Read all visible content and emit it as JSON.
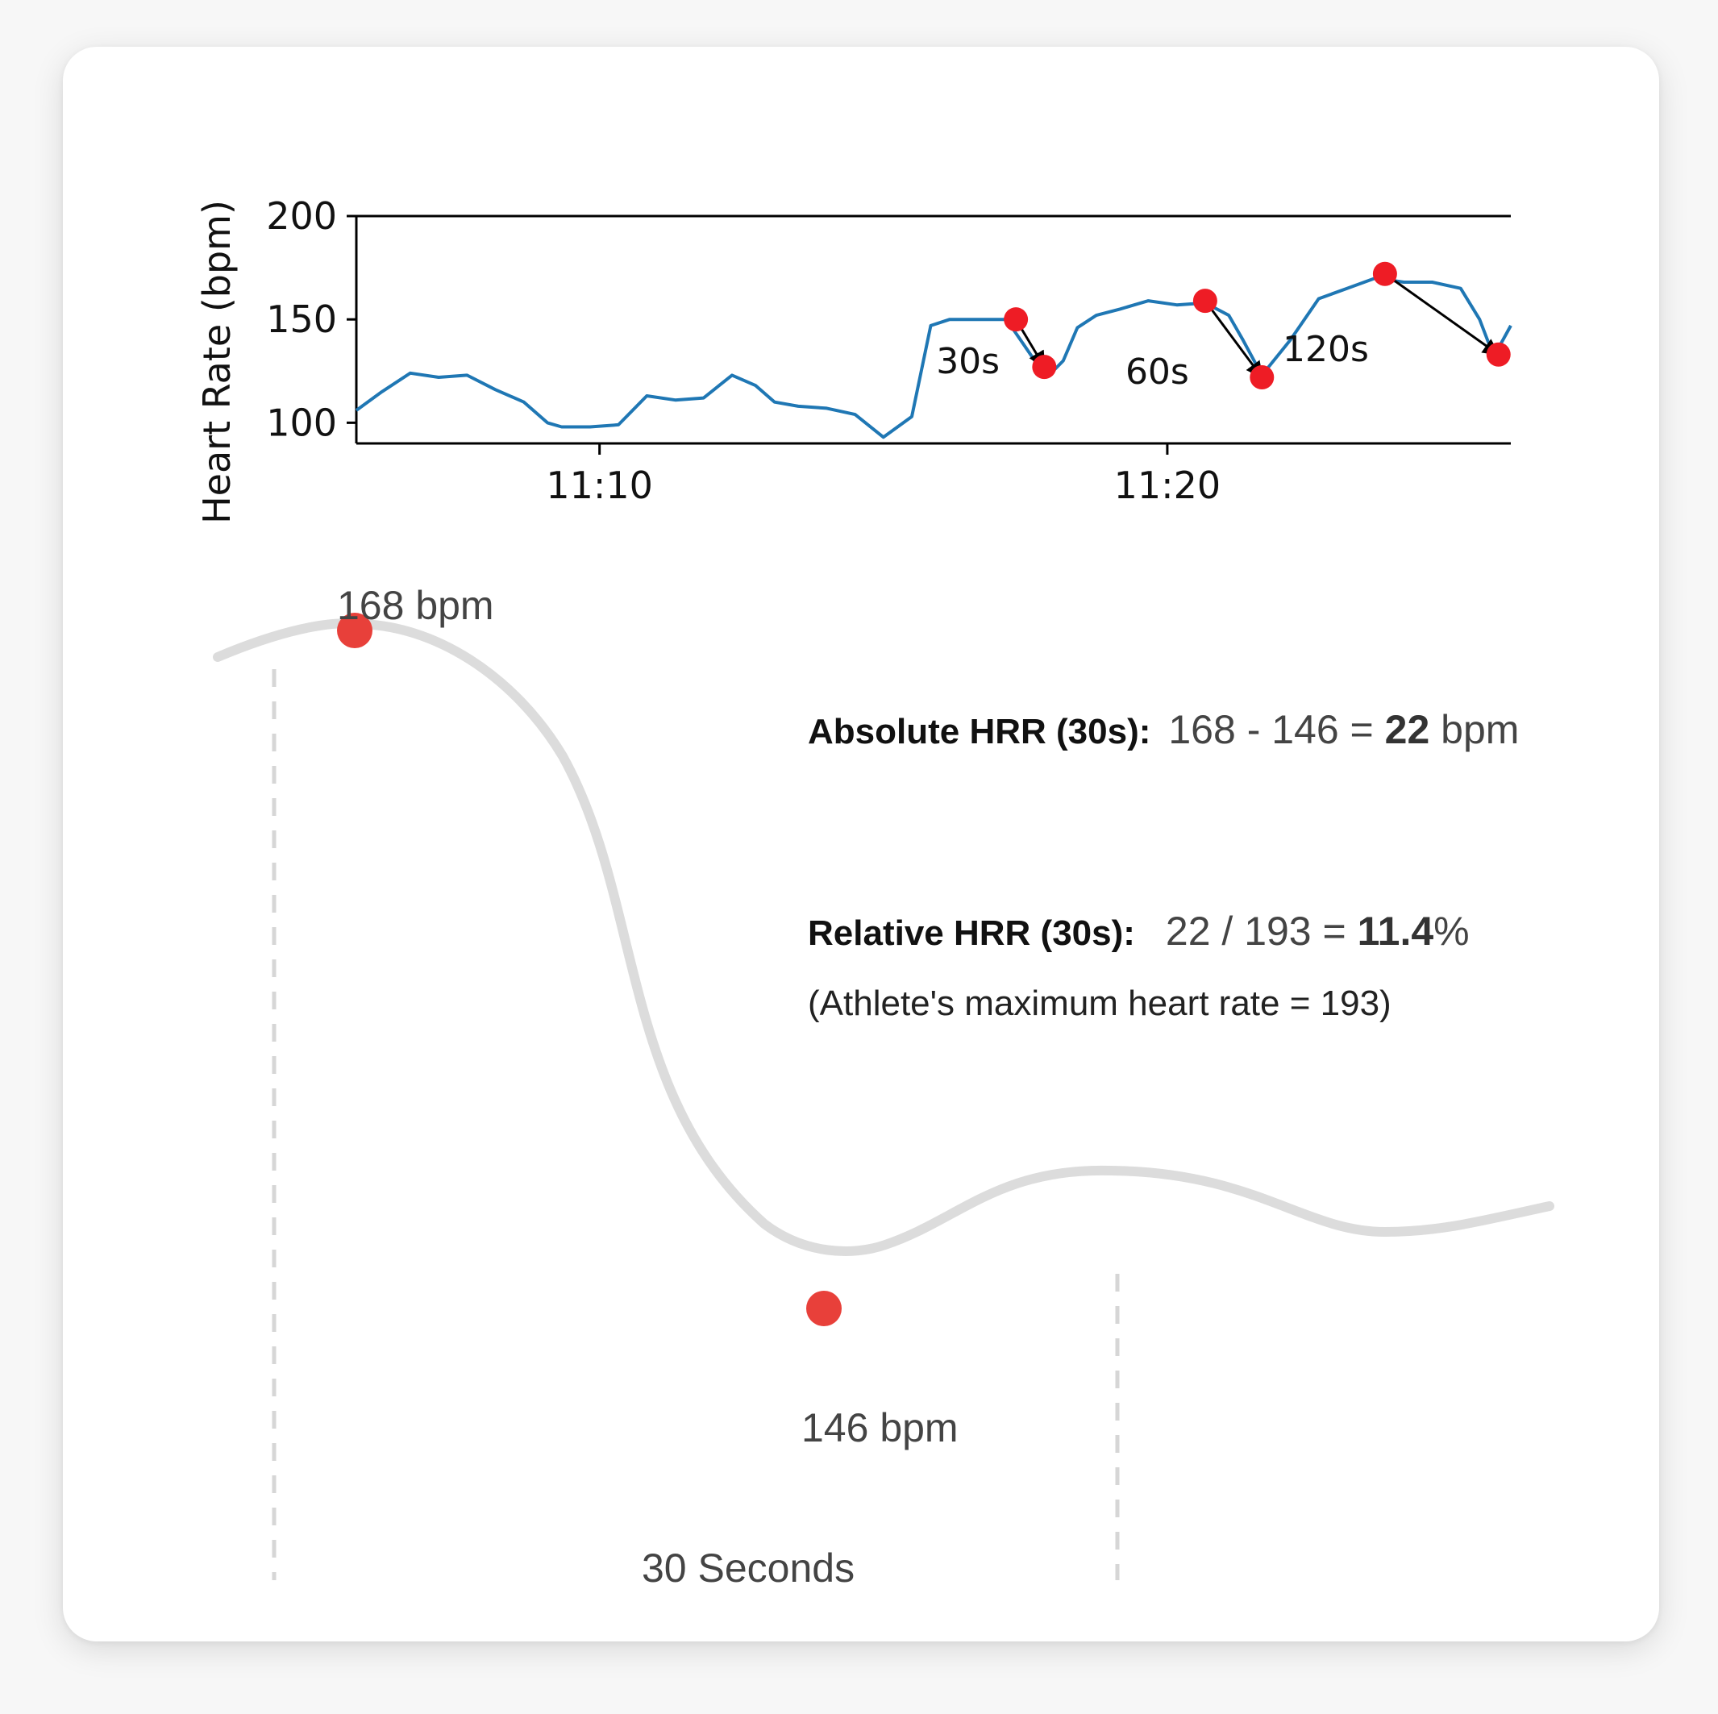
{
  "chart_data": [
    {
      "type": "line",
      "title": "",
      "ylabel": "Heart Rate (bpm)",
      "xlabel": "",
      "ylim": [
        90,
        200
      ],
      "xlim": [
        "11:05:43",
        "11:26:03"
      ],
      "yticks": [
        100,
        150,
        200
      ],
      "xticks": [
        "11:10",
        "11:20"
      ],
      "series": [
        {
          "values_time": [
            "11:05:43",
            "11:06:10",
            "11:06:40",
            "11:07:10",
            "11:07:40",
            "11:08:10",
            "11:08:40",
            "11:09:05",
            "11:09:20",
            "11:09:50",
            "11:10:20",
            "11:10:50",
            "11:11:20",
            "11:11:50",
            "11:12:20",
            "11:12:45",
            "11:13:05",
            "11:13:30",
            "11:14:00",
            "11:14:30",
            "11:15:00",
            "11:15:30",
            "11:15:50",
            "11:16:10",
            "11:16:40",
            "11:17:10",
            "11:17:40",
            "11:17:55",
            "11:18:10",
            "11:18:25",
            "11:18:45",
            "11:19:10",
            "11:19:40",
            "11:20:10",
            "11:20:40",
            "11:21:05",
            "11:21:20",
            "11:21:40",
            "11:22:10",
            "11:22:40",
            "11:23:10",
            "11:23:40",
            "11:24:10",
            "11:24:40",
            "11:25:10",
            "11:25:30",
            "11:25:45",
            "11:26:03"
          ],
          "values": [
            106,
            115,
            124,
            122,
            123,
            116,
            110,
            100,
            98,
            98,
            99,
            113,
            111,
            112,
            123,
            118,
            110,
            108,
            107,
            104,
            93,
            103,
            147,
            150,
            150,
            150,
            130,
            123,
            130,
            146,
            152,
            155,
            159,
            157,
            158,
            152,
            140,
            123,
            140,
            160,
            165,
            170,
            168,
            168,
            165,
            150,
            132,
            147
          ]
        }
      ],
      "markers": [
        {
          "time": "11:17:20",
          "value": 150
        },
        {
          "time": "11:17:50",
          "value": 127
        },
        {
          "time": "11:20:40",
          "value": 159
        },
        {
          "time": "11:21:40",
          "value": 122
        },
        {
          "time": "11:23:50",
          "value": 172
        },
        {
          "time": "11:25:50",
          "value": 133
        }
      ],
      "annotations": [
        {
          "text": "30s",
          "from_time": "11:17:20",
          "from_value": 150,
          "to_time": "11:17:50",
          "to_value": 127
        },
        {
          "text": "60s",
          "from_time": "11:20:40",
          "from_value": 159,
          "to_time": "11:21:40",
          "to_value": 122
        },
        {
          "text": "120s",
          "from_time": "11:23:50",
          "from_value": 172,
          "to_time": "11:25:50",
          "to_value": 133
        }
      ],
      "colors": {
        "line": "#1f77b4",
        "marker": "#ee1c25",
        "arrow": "#000000"
      }
    }
  ],
  "diagram": {
    "peak_label": "168 bpm",
    "trough_label": "146 bpm",
    "duration_label": "30 Seconds",
    "colors": {
      "curve": "#dcdcdc",
      "marker": "#e8403a",
      "guide": "#d6d6d6"
    }
  },
  "formulas": {
    "absolute": {
      "label": "Absolute HRR (30s):",
      "expr_prefix": "168 - 146 = ",
      "result": "22",
      "expr_suffix": " bpm"
    },
    "relative": {
      "label": "Relative HRR (30s):",
      "expr_prefix": "22 / 193 = ",
      "result": "11.4",
      "expr_suffix": "%"
    },
    "note": "(Athlete's maximum heart rate = 193)"
  }
}
